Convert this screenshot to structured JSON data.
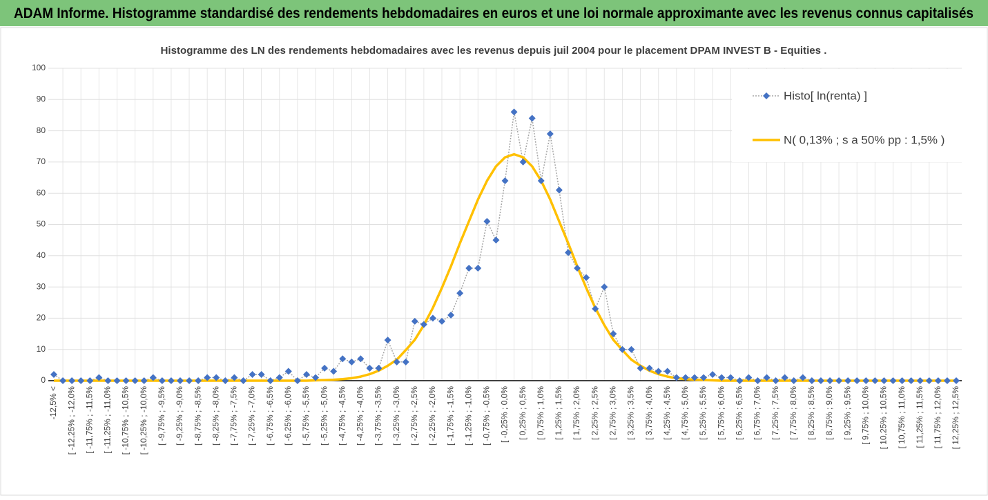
{
  "header": {
    "title": "ADAM Informe. Histogramme standardisé des rendements hebdomadaires en euros et une loi normale approximante avec les revenus connus capitalisés"
  },
  "chart_data": {
    "type": "line",
    "title": "Histogramme des LN des rendements hebdomadaires avec les revenus depuis juil 2004 pour le placement DPAM INVEST B - Equities .",
    "categories": [
      "-12,5% <",
      null,
      "[ -12,25% ; -12,0%",
      null,
      "[ -11,75% ; -11,5%",
      null,
      "[ -11,25% ; -11,0%",
      null,
      "[ -10,75% ; -10,5%",
      null,
      "[ -10,25% ; -10,0%",
      null,
      "[ -9,75% ; -9,5%",
      null,
      "[ -9,25% ; -9,0%",
      null,
      "[ -8,75% ; -8,5%",
      null,
      "[ -8,25% ; -8,0%",
      null,
      "[ -7,75% ; -7,5%",
      null,
      "[ -7,25% ; -7,0%",
      null,
      "[ -6,75% ; -6,5%",
      null,
      "[ -6,25% ; -6,0%",
      null,
      "[ -5,75% ; -5,5%",
      null,
      "[ -5,25% ; -5,0%",
      null,
      "[ -4,75% ; -4,5%",
      null,
      "[ -4,25% ; -4,0%",
      null,
      "[ -3,75% ; -3,5%",
      null,
      "[ -3,25% ; -3,0%",
      null,
      "[ -2,75% ; -2,5%",
      null,
      "[ -2,25% ; -2,0%",
      null,
      "[ -1,75% ; -1,5%",
      null,
      "[ -1,25% ; -1,0%",
      null,
      "[ -0,75% ; -0,5%",
      null,
      "[ -0,25% ; 0,0%",
      null,
      "[ 0,25% ; 0,5%",
      null,
      "[ 0,75% ; 1,0%",
      null,
      "[ 1,25% ; 1,5%",
      null,
      "[ 1,75% ; 2,0%",
      null,
      "[ 2,25% ; 2,5%",
      null,
      "[ 2,75% ; 3,0%",
      null,
      "[ 3,25% ; 3,5%",
      null,
      "[ 3,75% ; 4,0%",
      null,
      "[ 4,25% ; 4,5%",
      null,
      "[ 4,75% ; 5,0%",
      null,
      "[ 5,25% ; 5,5%",
      null,
      "[ 5,75% ; 6,0%",
      null,
      "[ 6,25% ; 6,5%",
      null,
      "[ 6,75% ; 7,0%",
      null,
      "[ 7,25% ; 7,5%",
      null,
      "[ 7,75% ; 8,0%",
      null,
      "[ 8,25% ; 8,5%",
      null,
      "[ 8,75% ; 9,0%",
      null,
      "[ 9,25% ; 9,5%",
      null,
      "[ 9,75% ; 10,0%",
      null,
      "[ 10,25% ; 10,5%",
      null,
      "[ 10,75% ; 11,0%",
      null,
      "[ 11,25% ; 11,5%",
      null,
      "[ 11,75% ; 12,0%",
      null,
      "[ 12,25% ; 12,5%"
    ],
    "series": [
      {
        "name": "Histo[ ln(renta) ]",
        "color": "#4472c4",
        "values": [
          2,
          0,
          0,
          0,
          0,
          1,
          0,
          0,
          0,
          0,
          0,
          1,
          0,
          0,
          0,
          0,
          0,
          1,
          1,
          0,
          1,
          0,
          2,
          2,
          0,
          1,
          3,
          0,
          2,
          1,
          4,
          3,
          7,
          6,
          7,
          4,
          4,
          13,
          6,
          6,
          19,
          18,
          20,
          19,
          21,
          28,
          36,
          36,
          51,
          45,
          64,
          86,
          70,
          84,
          64,
          79,
          61,
          41,
          36,
          33,
          23,
          30,
          15,
          10,
          10,
          4,
          4,
          3,
          3,
          1,
          1,
          1,
          1,
          2,
          1,
          1,
          0,
          1,
          0,
          1,
          0,
          1,
          0,
          1,
          0,
          0,
          0,
          0,
          0,
          0,
          0,
          0,
          0,
          0,
          0,
          0,
          0,
          0,
          0,
          0,
          0
        ]
      },
      {
        "name": "N( 0,13% ; s a 50% pp : 1,5% )",
        "color": "#ffc000",
        "values": [
          0,
          0,
          0,
          0,
          0,
          0,
          0,
          0,
          0,
          0,
          0,
          0,
          0,
          0,
          0,
          0,
          0,
          0,
          0,
          0,
          0,
          0,
          0,
          0,
          0,
          0,
          0,
          0,
          0,
          0.1,
          0.2,
          0.3,
          0.5,
          0.8,
          1.3,
          2.1,
          3.2,
          4.8,
          6.7,
          9.8,
          13.1,
          17.8,
          23.3,
          29.7,
          36.6,
          44.0,
          51.0,
          58.0,
          64.0,
          68.6,
          71.5,
          72.5,
          71.5,
          68.6,
          64.0,
          58.0,
          51.0,
          44.0,
          36.6,
          29.7,
          23.3,
          17.8,
          13.1,
          9.8,
          6.7,
          4.8,
          3.2,
          2.1,
          1.3,
          0.8,
          0.5,
          0.3,
          0.2,
          0.1,
          0,
          0,
          0,
          0,
          0,
          0,
          0,
          0,
          0,
          0,
          0,
          0,
          0,
          0,
          0,
          0,
          0,
          0,
          0,
          0,
          0,
          0,
          0,
          0,
          0,
          0,
          0
        ]
      }
    ],
    "ylim": [
      0,
      100
    ],
    "yticks": [
      0,
      10,
      20,
      30,
      40,
      50,
      60,
      70,
      80,
      90,
      100
    ],
    "grid": true
  }
}
